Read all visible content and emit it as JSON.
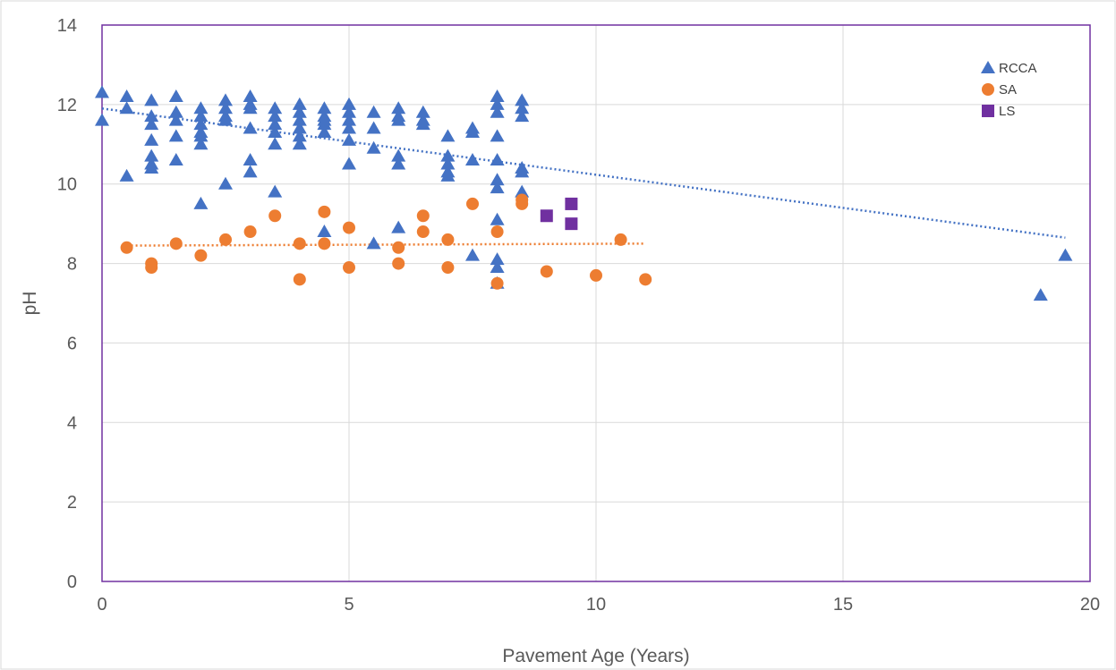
{
  "chart_data": {
    "type": "scatter",
    "xlabel": "Pavement Age (Years)",
    "ylabel": "pH",
    "xlim": [
      0,
      20
    ],
    "ylim": [
      0,
      14
    ],
    "x_ticks": [
      0,
      5,
      10,
      15,
      20
    ],
    "y_ticks": [
      0,
      2,
      4,
      6,
      8,
      10,
      12,
      14
    ],
    "x_tick_labels": [
      "0",
      "5",
      "10",
      "15",
      "20"
    ],
    "y_tick_labels": [
      "0",
      "2",
      "4",
      "6",
      "8",
      "10",
      "12",
      "14"
    ],
    "grid": true,
    "legend_position": "top-right",
    "series": [
      {
        "name": "RCCA",
        "marker": "triangle",
        "color": "#4472c4",
        "points": [
          [
            0,
            12.3
          ],
          [
            0,
            11.6
          ],
          [
            0.5,
            12.2
          ],
          [
            0.5,
            11.9
          ],
          [
            0.5,
            10.2
          ],
          [
            1,
            12.1
          ],
          [
            1,
            11.7
          ],
          [
            1,
            11.5
          ],
          [
            1,
            11.1
          ],
          [
            1,
            10.7
          ],
          [
            1,
            10.5
          ],
          [
            1,
            10.4
          ],
          [
            1.5,
            12.2
          ],
          [
            1.5,
            11.8
          ],
          [
            1.5,
            11.6
          ],
          [
            1.5,
            11.2
          ],
          [
            1.5,
            10.6
          ],
          [
            2,
            11.9
          ],
          [
            2,
            11.7
          ],
          [
            2,
            11.5
          ],
          [
            2,
            11.3
          ],
          [
            2,
            11.2
          ],
          [
            2,
            11.0
          ],
          [
            2,
            9.5
          ],
          [
            2.5,
            12.1
          ],
          [
            2.5,
            11.9
          ],
          [
            2.5,
            11.7
          ],
          [
            2.5,
            11.6
          ],
          [
            2.5,
            10.0
          ],
          [
            3,
            12.2
          ],
          [
            3,
            12.0
          ],
          [
            3,
            11.9
          ],
          [
            3,
            11.4
          ],
          [
            3,
            10.6
          ],
          [
            3,
            10.3
          ],
          [
            3.5,
            11.9
          ],
          [
            3.5,
            11.7
          ],
          [
            3.5,
            11.5
          ],
          [
            3.5,
            11.3
          ],
          [
            3.5,
            11.0
          ],
          [
            3.5,
            9.8
          ],
          [
            4,
            12.0
          ],
          [
            4,
            11.8
          ],
          [
            4,
            11.6
          ],
          [
            4,
            11.4
          ],
          [
            4,
            11.2
          ],
          [
            4,
            11.0
          ],
          [
            4.5,
            11.9
          ],
          [
            4.5,
            11.7
          ],
          [
            4.5,
            11.6
          ],
          [
            4.5,
            11.5
          ],
          [
            4.5,
            11.3
          ],
          [
            4.5,
            8.8
          ],
          [
            5,
            12.0
          ],
          [
            5,
            11.8
          ],
          [
            5,
            11.6
          ],
          [
            5,
            11.4
          ],
          [
            5,
            11.1
          ],
          [
            5,
            10.5
          ],
          [
            5.5,
            11.8
          ],
          [
            5.5,
            11.4
          ],
          [
            5.5,
            10.9
          ],
          [
            5.5,
            8.5
          ],
          [
            6,
            11.9
          ],
          [
            6,
            11.7
          ],
          [
            6,
            11.6
          ],
          [
            6,
            10.7
          ],
          [
            6,
            10.5
          ],
          [
            6,
            8.9
          ],
          [
            6.5,
            11.8
          ],
          [
            6.5,
            11.6
          ],
          [
            6.5,
            11.5
          ],
          [
            7,
            11.2
          ],
          [
            7,
            10.7
          ],
          [
            7,
            10.5
          ],
          [
            7,
            10.3
          ],
          [
            7,
            10.2
          ],
          [
            7.5,
            11.4
          ],
          [
            7.5,
            11.3
          ],
          [
            7.5,
            10.6
          ],
          [
            7.5,
            8.2
          ],
          [
            8,
            12.2
          ],
          [
            8,
            12.0
          ],
          [
            8,
            11.8
          ],
          [
            8,
            11.2
          ],
          [
            8,
            10.6
          ],
          [
            8,
            10.1
          ],
          [
            8,
            9.9
          ],
          [
            8,
            9.1
          ],
          [
            8,
            8.1
          ],
          [
            8,
            7.9
          ],
          [
            8,
            7.5
          ],
          [
            8.5,
            12.1
          ],
          [
            8.5,
            11.9
          ],
          [
            8.5,
            11.7
          ],
          [
            8.5,
            10.4
          ],
          [
            8.5,
            10.3
          ],
          [
            8.5,
            9.8
          ],
          [
            19,
            7.2
          ],
          [
            19.5,
            8.2
          ]
        ],
        "trendline": {
          "style": "dotted",
          "from": [
            0,
            11.9
          ],
          "to": [
            19.5,
            8.65
          ]
        }
      },
      {
        "name": "SA",
        "marker": "circle",
        "color": "#ed7d31",
        "points": [
          [
            0.5,
            8.4
          ],
          [
            1,
            8.0
          ],
          [
            1,
            7.9
          ],
          [
            1.5,
            8.5
          ],
          [
            2,
            8.2
          ],
          [
            2.5,
            8.6
          ],
          [
            3,
            8.8
          ],
          [
            3.5,
            9.2
          ],
          [
            4,
            8.5
          ],
          [
            4,
            7.6
          ],
          [
            4.5,
            9.3
          ],
          [
            4.5,
            8.5
          ],
          [
            5,
            8.9
          ],
          [
            5,
            7.9
          ],
          [
            6,
            8.4
          ],
          [
            6,
            8.0
          ],
          [
            6.5,
            9.2
          ],
          [
            6.5,
            8.8
          ],
          [
            7,
            8.6
          ],
          [
            7,
            7.9
          ],
          [
            7.5,
            9.5
          ],
          [
            8,
            8.8
          ],
          [
            8,
            7.5
          ],
          [
            8.5,
            9.6
          ],
          [
            8.5,
            9.5
          ],
          [
            9,
            7.8
          ],
          [
            10,
            7.7
          ],
          [
            10.5,
            8.6
          ],
          [
            11,
            7.6
          ]
        ],
        "trendline": {
          "style": "dotted",
          "from": [
            0.5,
            8.45
          ],
          "to": [
            11,
            8.5
          ]
        }
      },
      {
        "name": "LS",
        "marker": "square",
        "color": "#7030a0",
        "points": [
          [
            9,
            9.2
          ],
          [
            9.5,
            9.5
          ],
          [
            9.5,
            9.0
          ]
        ]
      }
    ]
  }
}
